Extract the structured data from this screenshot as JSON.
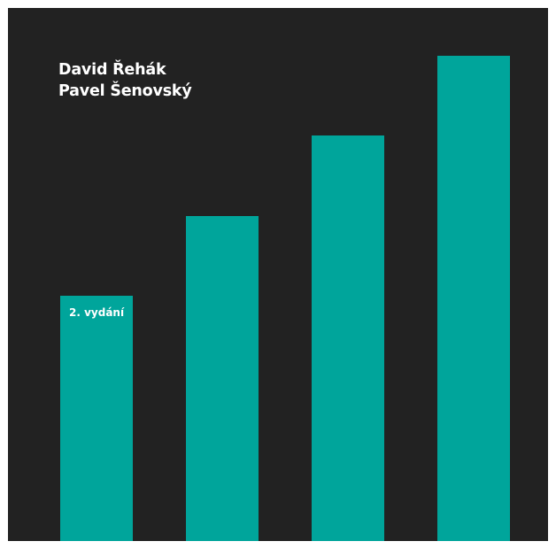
{
  "authors": [
    "David Řehák",
    "Pavel Šenovský"
  ],
  "edition": "2. vydání",
  "colors": {
    "background": "#222222",
    "bars": "#00a59b",
    "text": "#ffffff"
  },
  "bar_levels": [
    0.46,
    0.61,
    0.76,
    0.91
  ]
}
